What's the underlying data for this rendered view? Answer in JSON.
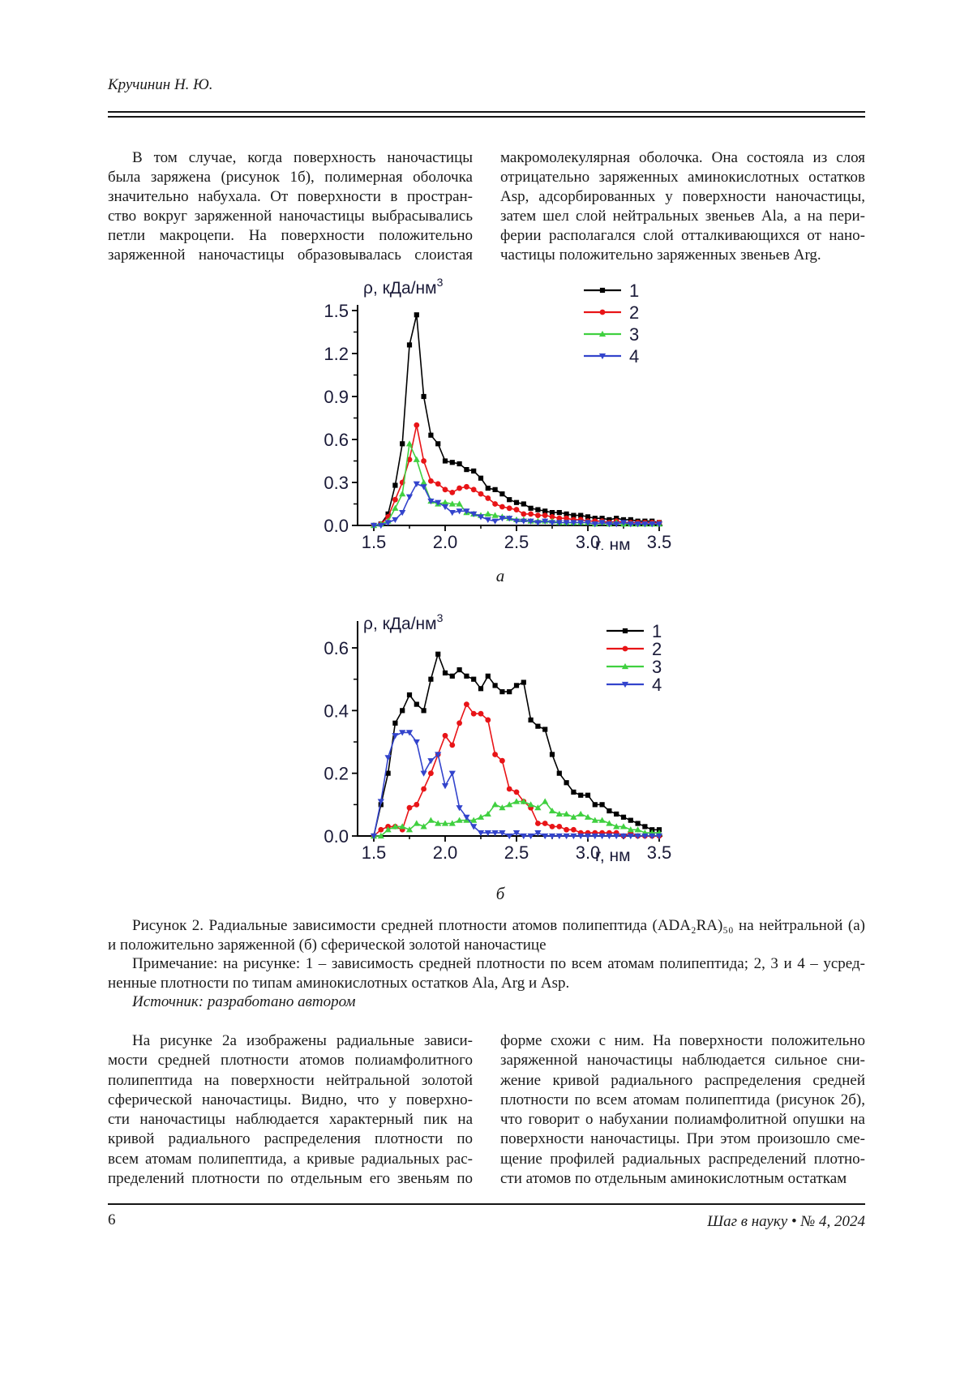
{
  "page": {
    "author": "Кручинин Н. Ю.",
    "page_number": "6",
    "journal_footer": "Шаг в науку • № 4, 2024"
  },
  "top_text": {
    "left_lines": [
      {
        "t": "В том случае, когда поверхность наночастицы",
        "indent": true
      },
      {
        "t": "была заряжена (рисунок 1б), полимерная оболочка"
      },
      {
        "t": "значительно набухала. От поверхности в простран-"
      },
      {
        "t": "ство вокруг заряженной наночастицы выбрасывались"
      },
      {
        "t": "петли макроцепи. На поверхности положительно"
      },
      {
        "t": "заряженной наночастицы образовывалась слоистая"
      }
    ],
    "right_lines": [
      {
        "t": "макромолекулярная оболочка. Она состояла из слоя"
      },
      {
        "t": "отрицательно заряженных аминокислотных остатков"
      },
      {
        "t": "Asp, адсорбированных у поверхности наночастицы,"
      },
      {
        "t": "затем шел слой нейтральных звеньев Ala, а на пери-"
      },
      {
        "t": "ферии располагался слой отталкивающихся от нано-"
      },
      {
        "t": "частицы положительно заряженных звеньев Arg.",
        "end": true
      }
    ]
  },
  "figure": {
    "label_a": "а",
    "label_b": "б",
    "caption_lines": [
      {
        "t": "Рисунок 2. Радиальные зависимости средней плотности атомов полипептида (ADA₂RA)₅₀ на нейтральной (а)",
        "indent": true
      },
      {
        "t": "и положительно заряженной (б) сферической золотой наночастице",
        "end": true
      },
      {
        "t": "Примечание: на рисунке: 1 – зависимость средней плотности по всем атомам полипептида; 2, 3 и 4 – усред-",
        "indent": true
      },
      {
        "t": "ненные плотности по типам аминокислотных остатков Ala, Arg и Asp.",
        "end": true
      },
      {
        "t": "Источник: разработано автором",
        "indent": true,
        "italic": true,
        "end": true
      }
    ]
  },
  "bottom_text": {
    "left_lines": [
      {
        "t": "На рисунке 2а изображены радиальные зависи-",
        "indent": true
      },
      {
        "t": "мости средней плотности атомов полиамфолитного"
      },
      {
        "t": "полипептида на поверхности нейтральной золотой"
      },
      {
        "t": "сферической наночастицы. Видно, что у поверхно-"
      },
      {
        "t": "сти наночастицы наблюдается характерный пик на"
      },
      {
        "t": "кривой радиального распределения плотности по"
      },
      {
        "t": "всем атомам полипептида, а кривые радиальных рас-"
      },
      {
        "t": "пределений плотности по отдельным его звеньям по"
      }
    ],
    "right_lines": [
      {
        "t": "форме схожи с ним. На поверхности положительно"
      },
      {
        "t": "заряженной наночастицы наблюдается сильное сни-"
      },
      {
        "t": "жение кривой радиального распределения средней"
      },
      {
        "t": "плотности по всем атомам полипептида (рисунок 2б),"
      },
      {
        "t": "что говорит о набухании полиамфолитной опушки на"
      },
      {
        "t": "поверхности наночастицы. При этом произошло сме-"
      },
      {
        "t": "щение профилей радиальных распределений плотно-"
      },
      {
        "t": "сти атомов по отдельным аминокислотным остаткам",
        "end": true
      }
    ]
  },
  "chart_data": [
    {
      "type": "line",
      "panel": "а",
      "ylabel": "ρ, кДа/нм",
      "ylabel_sup": "3",
      "xlabel": "r, нм",
      "x_start": 1.5,
      "x_step": 0.05,
      "xlim": [
        1.45,
        3.52
      ],
      "ylim": [
        0,
        1.5
      ],
      "x_ticks": [
        "1.5",
        "2.0",
        "2.5",
        "3.0",
        "3.5"
      ],
      "x_minor_ticks": [
        1.75,
        2.25,
        2.75,
        3.25
      ],
      "y_ticks": [
        "0.0",
        "0.3",
        "0.6",
        "0.9",
        "1.2",
        "1.5"
      ],
      "legend_position": "top-right",
      "series": [
        {
          "name": "1",
          "color": "#000000",
          "marker": "square",
          "values": [
            0.0,
            0.01,
            0.08,
            0.28,
            0.57,
            1.26,
            1.47,
            0.9,
            0.63,
            0.57,
            0.45,
            0.44,
            0.43,
            0.39,
            0.38,
            0.33,
            0.26,
            0.25,
            0.22,
            0.18,
            0.16,
            0.15,
            0.12,
            0.11,
            0.1,
            0.09,
            0.09,
            0.08,
            0.07,
            0.07,
            0.06,
            0.05,
            0.05,
            0.04,
            0.05,
            0.04,
            0.04,
            0.03,
            0.03,
            0.03,
            0.02
          ]
        },
        {
          "name": "2",
          "color": "#e81417",
          "marker": "circle",
          "values": [
            0.0,
            0.01,
            0.06,
            0.18,
            0.3,
            0.46,
            0.7,
            0.45,
            0.31,
            0.29,
            0.25,
            0.23,
            0.26,
            0.27,
            0.25,
            0.22,
            0.19,
            0.15,
            0.13,
            0.12,
            0.11,
            0.08,
            0.08,
            0.07,
            0.07,
            0.06,
            0.05,
            0.05,
            0.04,
            0.04,
            0.03,
            0.03,
            0.03,
            0.02,
            0.03,
            0.02,
            0.02,
            0.02,
            0.02,
            0.02,
            0.02
          ]
        },
        {
          "name": "3",
          "color": "#40d040",
          "marker": "triangle-up",
          "values": [
            0.0,
            0.01,
            0.03,
            0.12,
            0.22,
            0.57,
            0.46,
            0.3,
            0.17,
            0.15,
            0.16,
            0.15,
            0.15,
            0.09,
            0.08,
            0.07,
            0.08,
            0.07,
            0.06,
            0.05,
            0.04,
            0.04,
            0.03,
            0.03,
            0.03,
            0.03,
            0.02,
            0.02,
            0.02,
            0.02,
            0.02,
            0.01,
            0.02,
            0.01,
            0.02,
            0.01,
            0.01,
            0.01,
            0.01,
            0.01,
            0.01
          ]
        },
        {
          "name": "4",
          "color": "#3344cc",
          "marker": "triangle-down",
          "values": [
            0.0,
            0.0,
            0.02,
            0.04,
            0.09,
            0.2,
            0.29,
            0.27,
            0.17,
            0.16,
            0.13,
            0.09,
            0.1,
            0.1,
            0.08,
            0.06,
            0.04,
            0.03,
            0.05,
            0.05,
            0.03,
            0.03,
            0.03,
            0.02,
            0.03,
            0.02,
            0.02,
            0.02,
            0.02,
            0.02,
            0.02,
            0.01,
            0.02,
            0.01,
            0.01,
            0.02,
            0.01,
            0.01,
            0.01,
            0.01,
            0.01
          ]
        }
      ]
    },
    {
      "type": "line",
      "panel": "б",
      "ylabel": "ρ, кДа/нм",
      "ylabel_sup": "3",
      "xlabel": "r, нм",
      "x_start": 1.5,
      "x_step": 0.05,
      "xlim": [
        1.45,
        3.52
      ],
      "ylim": [
        0,
        0.65
      ],
      "x_ticks": [
        "1.5",
        "2.0",
        "2.5",
        "3.0",
        "3.5"
      ],
      "x_minor_ticks": [
        1.75,
        2.25,
        2.75,
        3.25
      ],
      "y_ticks": [
        "0.0",
        "0.2",
        "0.4",
        "0.6"
      ],
      "legend_position": "top-right",
      "series": [
        {
          "name": "1",
          "color": "#000000",
          "marker": "square",
          "values": [
            0.0,
            0.1,
            0.2,
            0.36,
            0.4,
            0.45,
            0.42,
            0.4,
            0.5,
            0.58,
            0.52,
            0.51,
            0.53,
            0.51,
            0.5,
            0.47,
            0.51,
            0.48,
            0.46,
            0.46,
            0.48,
            0.49,
            0.37,
            0.35,
            0.34,
            0.26,
            0.2,
            0.17,
            0.14,
            0.13,
            0.13,
            0.1,
            0.1,
            0.08,
            0.07,
            0.06,
            0.05,
            0.04,
            0.03,
            0.02,
            0.02
          ]
        },
        {
          "name": "2",
          "color": "#e81417",
          "marker": "circle",
          "values": [
            0.0,
            0.02,
            0.03,
            0.03,
            0.02,
            0.09,
            0.1,
            0.15,
            0.2,
            0.26,
            0.32,
            0.29,
            0.36,
            0.42,
            0.39,
            0.39,
            0.37,
            0.26,
            0.24,
            0.15,
            0.14,
            0.11,
            0.09,
            0.04,
            0.04,
            0.03,
            0.03,
            0.02,
            0.02,
            0.01,
            0.01,
            0.01,
            0.01,
            0.01,
            0.01,
            0.0,
            0.01,
            0.0,
            0.0,
            0.0,
            0.0
          ]
        },
        {
          "name": "3",
          "color": "#40d040",
          "marker": "triangle-up",
          "values": [
            0.0,
            0.0,
            0.02,
            0.03,
            0.03,
            0.02,
            0.04,
            0.03,
            0.05,
            0.04,
            0.04,
            0.04,
            0.05,
            0.05,
            0.05,
            0.06,
            0.07,
            0.1,
            0.09,
            0.1,
            0.11,
            0.11,
            0.1,
            0.09,
            0.11,
            0.08,
            0.07,
            0.07,
            0.06,
            0.07,
            0.06,
            0.05,
            0.05,
            0.04,
            0.03,
            0.03,
            0.02,
            0.02,
            0.01,
            0.01,
            0.01
          ]
        },
        {
          "name": "4",
          "color": "#3344cc",
          "marker": "triangle-down",
          "values": [
            0.0,
            0.11,
            0.25,
            0.32,
            0.33,
            0.33,
            0.3,
            0.2,
            0.24,
            0.26,
            0.16,
            0.2,
            0.09,
            0.06,
            0.03,
            0.01,
            0.01,
            0.01,
            0.01,
            0.0,
            0.01,
            0.0,
            0.0,
            0.01,
            0.0,
            0.0,
            0.0,
            0.0,
            0.0,
            0.0,
            0.0,
            0.0,
            0.0,
            0.0,
            0.0,
            0.0,
            0.0,
            0.0,
            0.0,
            0.0,
            0.0
          ]
        }
      ]
    }
  ]
}
